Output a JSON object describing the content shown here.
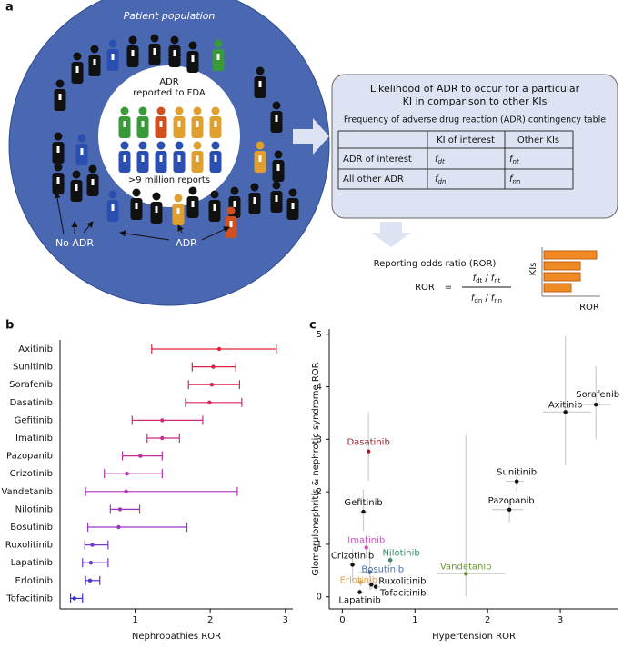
{
  "panel_labels": [
    "a",
    "b",
    "c"
  ],
  "diagram": {
    "population_title": "Patient population",
    "inner_lines": [
      "ADR",
      "reported to FDA"
    ],
    "reports": ">9 million reports",
    "no_adr": "No ADR",
    "adr": "ADR",
    "box_title": [
      "Likelihood of ADR to occur for a particular",
      "KI in comparison to other KIs"
    ],
    "table_title": "Frequency of adverse drug reaction (ADR) contingency table",
    "table": {
      "header": [
        "KI of interest",
        "Other KIs"
      ],
      "rows": [
        "ADR of interest",
        "All other ADR"
      ],
      "cells": [
        [
          {
            "f": "f",
            "sub": "dt"
          },
          {
            "f": "f",
            "sub": "nt"
          }
        ],
        [
          {
            "f": "f",
            "sub": "dn"
          },
          {
            "f": "f",
            "sub": "nn"
          }
        ]
      ]
    },
    "ror_title": "Reporting odds ratio (ROR)",
    "ror": "ROR",
    "equals": "=",
    "numerator": {
      "f1": "f",
      "s1": "dt",
      "op": "/",
      "f2": "f",
      "s2": "nt"
    },
    "denominator": {
      "f1": "f",
      "s1": "dn",
      "op": "/",
      "f2": "f",
      "s2": "nn"
    },
    "mini_y": "KIs",
    "mini_x": "ROR"
  },
  "chart_data": [
    {
      "type": "forest",
      "xlabel": "Nephropathies ROR",
      "categories": [
        "Axitinib",
        "Sunitinib",
        "Sorafenib",
        "Dasatinib",
        "Gefitinib",
        "Imatinib",
        "Pazopanib",
        "Crizotinib",
        "Vandetanib",
        "Nilotinib",
        "Bosutinib",
        "Ruxolitinib",
        "Lapatinib",
        "Erlotinib",
        "Tofacitinib"
      ],
      "values": [
        2.12,
        2.04,
        2.02,
        1.99,
        1.36,
        1.36,
        1.07,
        0.89,
        0.88,
        0.8,
        0.78,
        0.43,
        0.41,
        0.4,
        0.19
      ],
      "low": [
        1.22,
        1.76,
        1.71,
        1.67,
        0.96,
        1.16,
        0.83,
        0.59,
        0.34,
        0.67,
        0.37,
        0.33,
        0.3,
        0.34,
        0.14
      ],
      "high": [
        2.88,
        2.34,
        2.39,
        2.42,
        1.9,
        1.59,
        1.36,
        1.36,
        2.36,
        1.06,
        1.69,
        0.64,
        0.64,
        0.53,
        0.3
      ],
      "colors": [
        "#e4203a",
        "#e02245",
        "#dc2450",
        "#d8265c",
        "#d02a78",
        "#c82c8c",
        "#c02e9c",
        "#b830aa",
        "#b032b6",
        "#a234be",
        "#9436c4",
        "#7c36c8",
        "#6a34cc",
        "#5632ce",
        "#3a30d2"
      ],
      "xlim": [
        0,
        3.1
      ],
      "xticks": [
        1,
        2,
        3
      ]
    },
    {
      "type": "scatter",
      "xlabel": "Hypertension ROR",
      "ylabel": "Glomerulonephritis & nephrotic syndrome ROR",
      "labels": [
        "Axitinib",
        "Sorafenib",
        "Sunitinib",
        "Pazopanib",
        "Dasatinib",
        "Gefitinib",
        "Imatinib",
        "Nilotinib",
        "Bosutinib",
        "Vandetanib",
        "Crizotinib",
        "Erlotinib",
        "Ruxolitinib",
        "Tofacitinib",
        "Lapatinib"
      ],
      "x": [
        3.07,
        3.49,
        2.4,
        2.3,
        0.36,
        0.29,
        0.33,
        0.66,
        0.38,
        1.7,
        0.14,
        0.25,
        0.4,
        0.46,
        0.24
      ],
      "y": [
        3.52,
        3.66,
        2.2,
        1.66,
        2.77,
        1.62,
        0.94,
        0.7,
        0.47,
        0.44,
        0.61,
        0.28,
        0.23,
        0.19,
        0.09
      ],
      "x_low": [
        2.76,
        3.2,
        2.25,
        2.06,
        0.35,
        0.24,
        0.3,
        0.62,
        0.24,
        1.3,
        0.1,
        0.2,
        0.35,
        0.4,
        0.19
      ],
      "x_high": [
        3.43,
        3.7,
        2.5,
        2.49,
        0.38,
        0.34,
        0.36,
        0.7,
        0.52,
        2.24,
        0.18,
        0.3,
        0.45,
        0.52,
        0.29
      ],
      "y_low": [
        2.5,
        3.0,
        1.97,
        1.41,
        2.21,
        1.25,
        0.73,
        0.6,
        0.12,
        0.0,
        0.3,
        0.2,
        0.15,
        0.12,
        0.04
      ],
      "y_high": [
        4.96,
        4.39,
        2.39,
        1.85,
        3.52,
        2.04,
        1.17,
        0.8,
        0.91,
        3.08,
        0.91,
        0.36,
        0.31,
        0.26,
        0.14
      ],
      "colors": [
        "#111111",
        "#111111",
        "#111111",
        "#111111",
        "#a0202a",
        "#111111",
        "#d050c0",
        "#3a8a6a",
        "#4a70b0",
        "#6a9a30",
        "#111111",
        "#e8a040",
        "#111111",
        "#111111",
        "#111111"
      ],
      "xlim": [
        -0.18,
        3.8
      ],
      "ylim": [
        -0.23,
        5.1
      ],
      "xticks": [
        0,
        1,
        2,
        3
      ],
      "yticks": [
        0,
        1,
        2,
        3,
        4,
        5
      ]
    }
  ]
}
